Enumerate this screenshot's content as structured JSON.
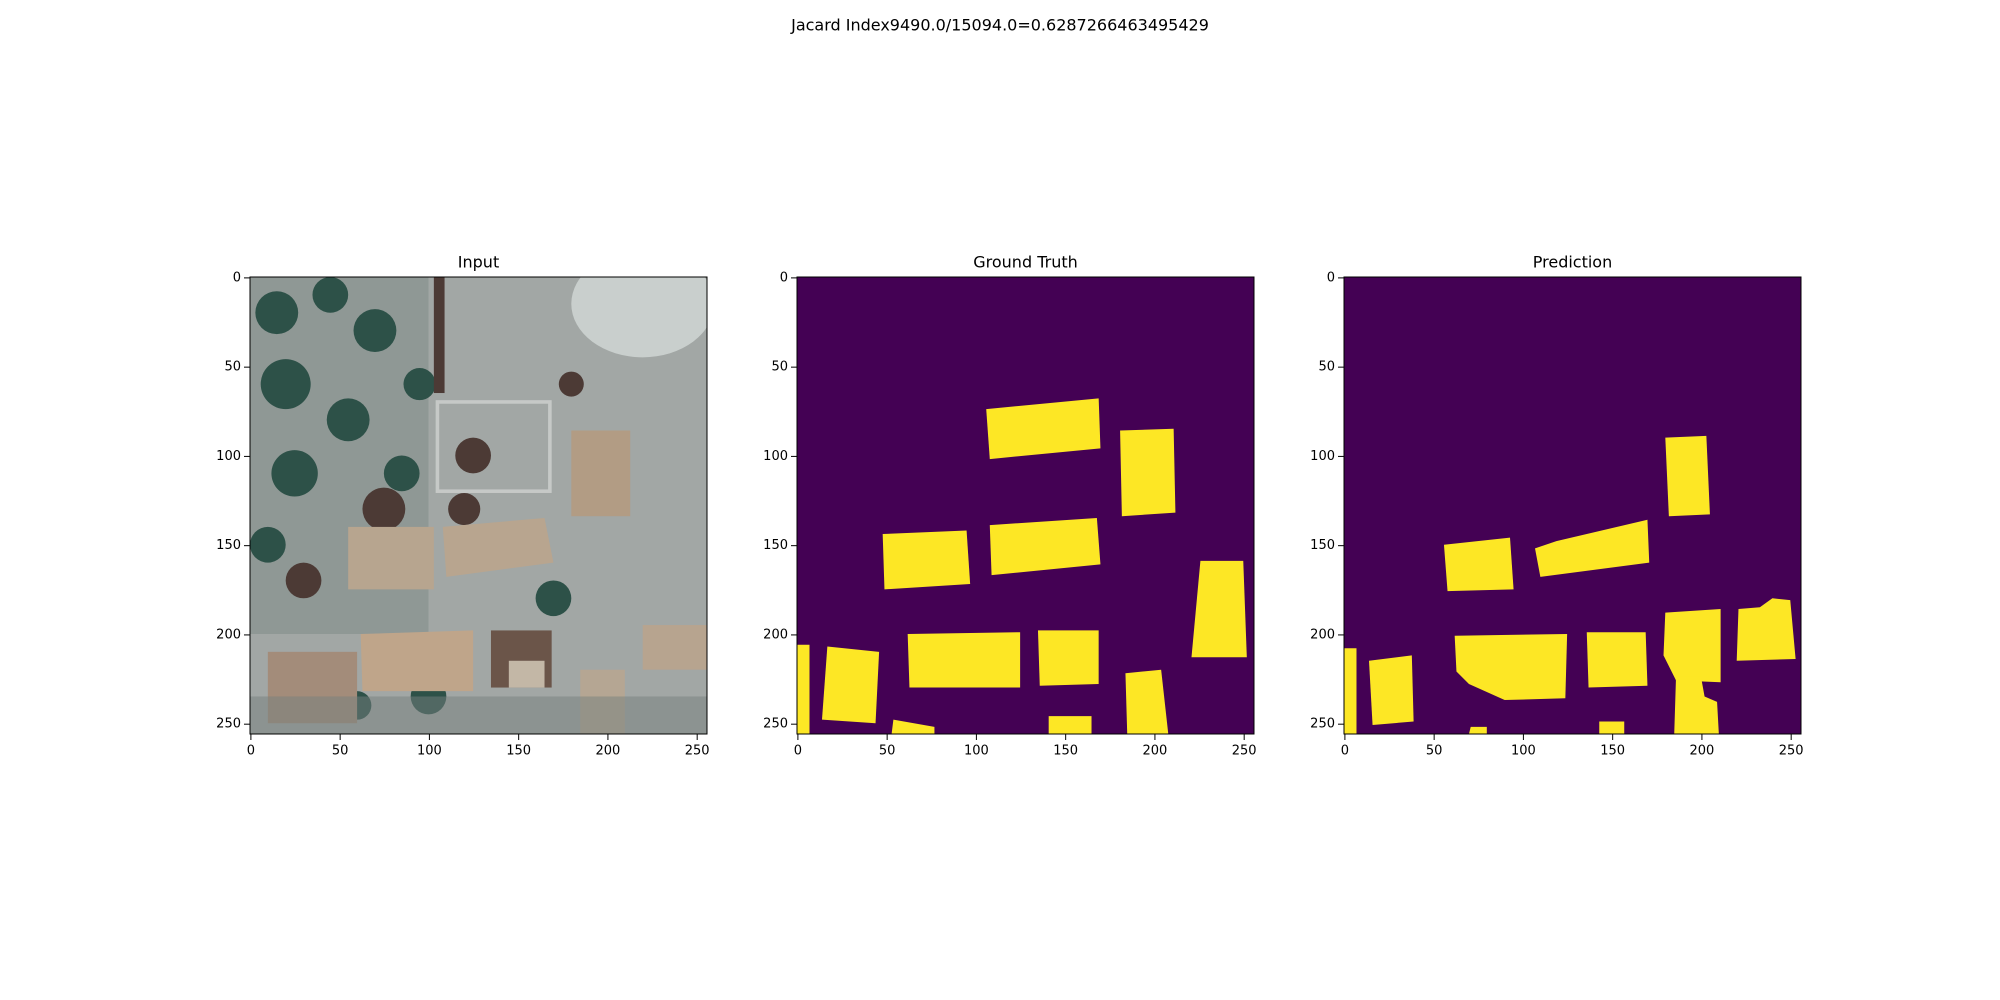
{
  "title": "Jacard Index9490.0/15094.0=0.6287266463495429",
  "chart_data": [
    {
      "type": "image",
      "title": "Input",
      "xlim": [
        -0.5,
        255.5
      ],
      "ylim": [
        255.5,
        -0.5
      ],
      "xticks": [
        0,
        50,
        100,
        150,
        200,
        250
      ],
      "yticks": [
        0,
        50,
        100,
        150,
        200,
        250
      ]
    },
    {
      "type": "image",
      "title": "Ground Truth",
      "xlim": [
        -0.5,
        255.5
      ],
      "ylim": [
        255.5,
        -0.5
      ],
      "xticks": [
        0,
        50,
        100,
        150,
        200,
        250
      ],
      "yticks": [
        0,
        50,
        100,
        150,
        200,
        250
      ]
    },
    {
      "type": "image",
      "title": "Prediction",
      "xlim": [
        -0.5,
        255.5
      ],
      "ylim": [
        255.5,
        -0.5
      ],
      "xticks": [
        0,
        50,
        100,
        150,
        200,
        250
      ],
      "yticks": [
        0,
        50,
        100,
        150,
        200,
        250
      ]
    }
  ]
}
